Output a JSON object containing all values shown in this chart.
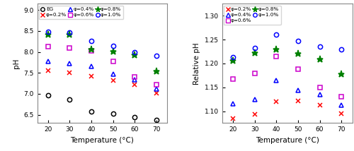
{
  "temperatures": [
    20,
    30,
    40,
    50,
    60,
    70
  ],
  "left_ylabel": "pH",
  "right_ylabel": "Relative pH",
  "xlabel": "Temperature (°C)",
  "left_ylim": [
    6.3,
    9.15
  ],
  "right_ylim": [
    1.075,
    1.325
  ],
  "left_yticks": [
    6.5,
    7.0,
    7.5,
    8.0,
    8.5,
    9.0
  ],
  "right_yticks": [
    1.1,
    1.15,
    1.2,
    1.25,
    1.3
  ],
  "left_data": {
    "EG": [
      6.97,
      6.87,
      6.58,
      6.52,
      6.45,
      6.38
    ],
    "0.2%": [
      7.55,
      7.5,
      7.42,
      7.31,
      7.22,
      7.02
    ],
    "0.4%": [
      7.78,
      7.72,
      7.65,
      7.47,
      7.33,
      7.12
    ],
    "0.6%": [
      8.12,
      8.1,
      8.03,
      7.78,
      7.4,
      7.22
    ],
    "0.8%": [
      8.42,
      8.42,
      8.06,
      8.01,
      7.92,
      7.53
    ],
    "1.0%": [
      8.48,
      8.47,
      8.26,
      8.14,
      8.0,
      7.9
    ]
  },
  "right_data": {
    "0.2%": [
      1.085,
      1.093,
      1.12,
      1.121,
      1.112,
      1.095
    ],
    "0.4%": [
      1.115,
      1.125,
      1.165,
      1.144,
      1.135,
      1.112
    ],
    "0.6%": [
      1.167,
      1.179,
      1.215,
      1.188,
      1.15,
      1.13
    ],
    "0.8%": [
      1.205,
      1.222,
      1.23,
      1.22,
      1.208,
      1.177
    ],
    "1.0%": [
      1.213,
      1.232,
      1.26,
      1.247,
      1.235,
      1.23
    ]
  },
  "series_styles": {
    "EG": {
      "color": "#000000",
      "marker": "o",
      "filled": false
    },
    "0.2%": {
      "color": "#ff0000",
      "marker": "x",
      "filled": true
    },
    "0.4%": {
      "color": "#0000ff",
      "marker": "^",
      "filled": false
    },
    "0.6%": {
      "color": "#cc00cc",
      "marker": "s",
      "filled": false
    },
    "0.8%": {
      "color": "#008000",
      "marker": "*",
      "filled": true
    },
    "1.0%": {
      "color": "#0000ff",
      "marker": "o",
      "filled": false
    }
  },
  "left_legend": [
    "EG",
    "φ=0.2%",
    "φ=0.4%",
    "φ=0.6%",
    "φ=0.8%",
    "φ=1.0%"
  ],
  "right_legend": [
    "φ=0.2%",
    "φ=0.4%",
    "φ=0.6%",
    "φ=0.8%",
    "φ=1.0%"
  ]
}
